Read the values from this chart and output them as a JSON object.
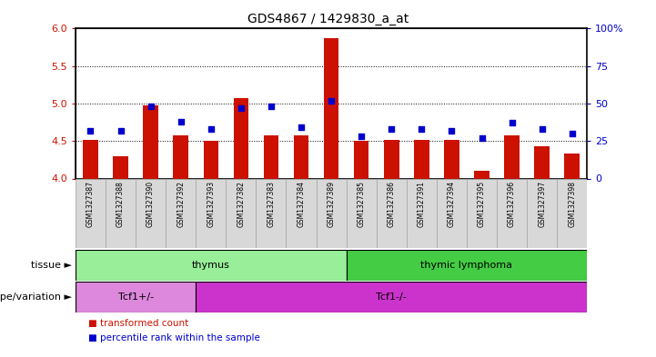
{
  "title": "GDS4867 / 1429830_a_at",
  "samples": [
    "GSM1327387",
    "GSM1327388",
    "GSM1327390",
    "GSM1327392",
    "GSM1327393",
    "GSM1327382",
    "GSM1327383",
    "GSM1327384",
    "GSM1327389",
    "GSM1327385",
    "GSM1327386",
    "GSM1327391",
    "GSM1327394",
    "GSM1327395",
    "GSM1327396",
    "GSM1327397",
    "GSM1327398"
  ],
  "transformed_count": [
    4.52,
    4.3,
    4.98,
    4.57,
    4.5,
    5.07,
    4.57,
    4.57,
    5.87,
    4.5,
    4.52,
    4.52,
    4.52,
    4.1,
    4.57,
    4.43,
    4.33
  ],
  "percentile_rank": [
    32,
    32,
    48,
    38,
    33,
    47,
    48,
    34,
    52,
    28,
    33,
    33,
    32,
    27,
    37,
    33,
    30
  ],
  "ylim_left": [
    4.0,
    6.0
  ],
  "ylim_right": [
    0,
    100
  ],
  "yticks_left": [
    4.0,
    4.5,
    5.0,
    5.5,
    6.0
  ],
  "yticks_right": [
    0,
    25,
    50,
    75,
    100
  ],
  "gridlines": [
    4.5,
    5.0,
    5.5
  ],
  "bar_color": "#cc1100",
  "dot_color": "#0000cc",
  "tissue_groups": [
    {
      "label": "thymus",
      "start": 0,
      "end": 8,
      "color": "#99ee99"
    },
    {
      "label": "thymic lymphoma",
      "start": 9,
      "end": 16,
      "color": "#44cc44"
    }
  ],
  "genotype_groups": [
    {
      "label": "Tcf1+/-",
      "start": 0,
      "end": 3,
      "color": "#dd88dd"
    },
    {
      "label": "Tcf1-/-",
      "start": 4,
      "end": 16,
      "color": "#cc33cc"
    }
  ],
  "tissue_label": "tissue",
  "genotype_label": "genotype/variation",
  "legend_items": [
    {
      "color": "#cc1100",
      "label": "transformed count"
    },
    {
      "color": "#0000cc",
      "label": "percentile rank within the sample"
    }
  ],
  "bar_width": 0.5,
  "tick_bg_color": "#d8d8d8",
  "tick_edge_color": "#aaaaaa"
}
